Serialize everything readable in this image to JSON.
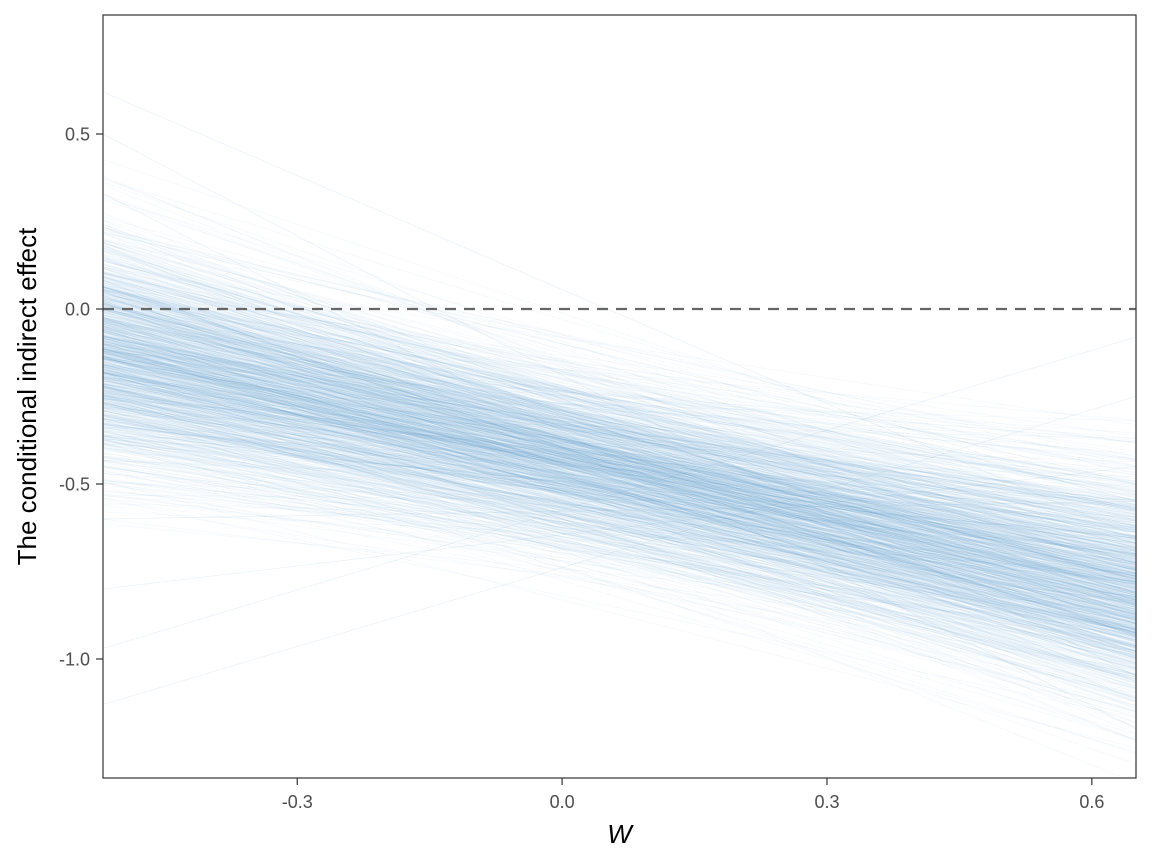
{
  "chart_data": {
    "type": "line",
    "title": "",
    "xlabel": "W",
    "ylabel": "The conditional indirect effect",
    "xlim": [
      -0.52,
      0.65
    ],
    "ylim": [
      -1.34,
      0.84
    ],
    "x_ticks": [
      -0.3,
      0.0,
      0.3,
      0.6
    ],
    "x_tick_labels": [
      "-0.3",
      "0.0",
      "0.3",
      "0.6"
    ],
    "y_ticks": [
      -1.0,
      -0.5,
      0.0,
      0.5
    ],
    "y_tick_labels": [
      "-1.0",
      "-0.5",
      "0.0",
      "0.5"
    ],
    "grid": false,
    "reference_line": {
      "y": 0.0,
      "style": "dashed",
      "color": "#666666"
    },
    "line_color": "#5b9ac8",
    "n_draws": 1200,
    "draws_summary": {
      "median_line": [
        {
          "x": -0.52,
          "y": -0.12
        },
        {
          "x": 0.65,
          "y": -0.8
        }
      ],
      "approx_extremes_at_left": [
        -1.13,
        0.62
      ],
      "approx_extremes_at_right": [
        -1.33,
        -0.08
      ]
    },
    "series": [
      {
        "values": [
          {
            "x": -0.52,
            "y": 0.62
          },
          {
            "x": 0.65,
            "y": -0.65
          }
        ]
      },
      {
        "values": [
          {
            "x": -0.52,
            "y": 0.5
          },
          {
            "x": 0.65,
            "y": -1.05
          }
        ]
      },
      {
        "values": [
          {
            "x": -0.52,
            "y": 0.33
          },
          {
            "x": 0.65,
            "y": -1.2
          }
        ]
      },
      {
        "values": [
          {
            "x": -0.52,
            "y": 0.22
          },
          {
            "x": 0.65,
            "y": -0.5
          }
        ]
      },
      {
        "values": [
          {
            "x": -0.52,
            "y": 0.05
          },
          {
            "x": 0.65,
            "y": -0.95
          }
        ]
      },
      {
        "values": [
          {
            "x": -0.52,
            "y": -0.12
          },
          {
            "x": 0.65,
            "y": -0.8
          }
        ]
      },
      {
        "values": [
          {
            "x": -0.52,
            "y": -0.25
          },
          {
            "x": 0.65,
            "y": -0.6
          }
        ]
      },
      {
        "values": [
          {
            "x": -0.52,
            "y": -0.45
          },
          {
            "x": 0.65,
            "y": -0.9
          }
        ]
      },
      {
        "values": [
          {
            "x": -0.52,
            "y": -0.6
          },
          {
            "x": 0.65,
            "y": -0.55
          }
        ]
      },
      {
        "values": [
          {
            "x": -0.52,
            "y": -0.8
          },
          {
            "x": 0.65,
            "y": -0.45
          }
        ]
      },
      {
        "values": [
          {
            "x": -0.52,
            "y": -0.97
          },
          {
            "x": 0.65,
            "y": -0.08
          }
        ]
      },
      {
        "values": [
          {
            "x": -0.52,
            "y": -1.13
          },
          {
            "x": 0.65,
            "y": -0.25
          }
        ]
      }
    ]
  }
}
